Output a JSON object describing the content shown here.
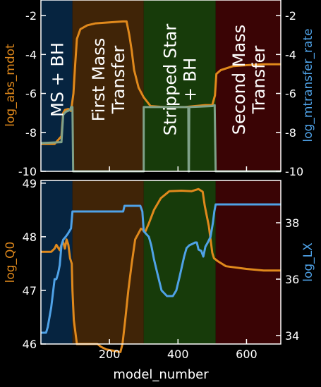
{
  "chart_data": [
    {
      "type": "line",
      "panel": "top",
      "xlim": [
        0,
        700
      ],
      "ylim_left": [
        -10,
        -1.2
      ],
      "ylim_right": [
        -10,
        -1.2
      ],
      "ylabel_left": "log_abs_mdot",
      "ylabel_right": "log_mtransfer_rate",
      "ytick_labels_left": [
        "-2",
        "-4",
        "-6",
        "-8",
        "-10"
      ],
      "ytick_labels_right": [
        "-2",
        "-4",
        "-6",
        "-8",
        "-10"
      ],
      "yticks": [
        -2,
        -4,
        -6,
        -8,
        -10
      ],
      "phases": [
        {
          "label": "MS + BH",
          "start": 0,
          "end": 92,
          "color": "#062440"
        },
        {
          "label": "First Mass\nTransfer",
          "start": 92,
          "end": 300,
          "color": "#402407"
        },
        {
          "label": "Stripped Star\n+ BH",
          "start": 300,
          "end": 510,
          "color": "#173b0a"
        },
        {
          "label": "Second Mass\nTransfer",
          "start": 510,
          "end": 700,
          "color": "#3a0405"
        }
      ],
      "series": [
        {
          "axis": "left",
          "color": "#e0891c",
          "points": [
            [
              0,
              -8.6
            ],
            [
              40,
              -8.6
            ],
            [
              60,
              -8.2
            ],
            [
              65,
              -7.0
            ],
            [
              70,
              -6.85
            ],
            [
              80,
              -6.8
            ],
            [
              88,
              -6.9
            ],
            [
              95,
              -6.0
            ],
            [
              100,
              -4.5
            ],
            [
              105,
              -3.2
            ],
            [
              115,
              -2.7
            ],
            [
              135,
              -2.5
            ],
            [
              160,
              -2.4
            ],
            [
              200,
              -2.35
            ],
            [
              240,
              -2.3
            ],
            [
              250,
              -2.3
            ],
            [
              258,
              -3.0
            ],
            [
              265,
              -3.8
            ],
            [
              272,
              -4.8
            ],
            [
              285,
              -5.7
            ],
            [
              300,
              -6.2
            ],
            [
              320,
              -6.65
            ],
            [
              360,
              -6.7
            ],
            [
              420,
              -6.7
            ],
            [
              480,
              -6.6
            ],
            [
              500,
              -6.6
            ],
            [
              508,
              -6.1
            ],
            [
              512,
              -5.0
            ],
            [
              525,
              -4.8
            ],
            [
              560,
              -4.6
            ],
            [
              600,
              -4.55
            ],
            [
              650,
              -4.5
            ],
            [
              700,
              -4.5
            ]
          ]
        },
        {
          "axis": "right",
          "color": "#7fa189",
          "points": [
            [
              0,
              -8.55
            ],
            [
              60,
              -8.5
            ],
            [
              65,
              -7.1
            ],
            [
              72,
              -6.95
            ],
            [
              85,
              -6.85
            ],
            [
              88,
              -6.7
            ],
            [
              92,
              -6.7
            ],
            [
              94,
              -10
            ],
            [
              300,
              -10
            ],
            [
              300,
              -6.7
            ],
            [
              430,
              -6.7
            ],
            [
              431,
              -10
            ],
            [
              432,
              -10
            ],
            [
              433,
              -6.7
            ],
            [
              500,
              -6.65
            ],
            [
              507,
              -6.6
            ],
            [
              510,
              -10
            ],
            [
              700,
              -10
            ]
          ]
        }
      ]
    },
    {
      "type": "line",
      "panel": "bottom",
      "xlim": [
        0,
        700
      ],
      "xlabel": "model_number",
      "xtick_labels": [
        "200",
        "400",
        "600"
      ],
      "xticks": [
        200,
        400,
        600
      ],
      "ylim_left": [
        46,
        49.05
      ],
      "ylim_right": [
        33.7,
        39.5
      ],
      "ylabel_left": "log_Q0",
      "ylabel_right": "log_LX",
      "ytick_labels_left": [
        "49",
        "48",
        "47",
        "46"
      ],
      "yticks_left": [
        49,
        48,
        47,
        46
      ],
      "ytick_labels_right": [
        "38",
        "36",
        "34"
      ],
      "yticks_right": [
        38,
        36,
        34
      ],
      "series": [
        {
          "axis": "left",
          "color": "#e0891c",
          "points": [
            [
              0,
              47.72
            ],
            [
              30,
              47.72
            ],
            [
              40,
              47.78
            ],
            [
              45,
              47.85
            ],
            [
              55,
              47.75
            ],
            [
              60,
              47.85
            ],
            [
              65,
              47.9
            ],
            [
              70,
              47.78
            ],
            [
              75,
              47.95
            ],
            [
              80,
              47.85
            ],
            [
              85,
              47.6
            ],
            [
              90,
              47.5
            ],
            [
              92,
              47.0
            ],
            [
              96,
              46.45
            ],
            [
              105,
              46.0
            ],
            [
              165,
              46.0
            ],
            [
              175,
              45.95
            ],
            [
              190,
              45.9
            ],
            [
              232,
              45.85
            ],
            [
              238,
              46.0
            ],
            [
              246,
              46.45
            ],
            [
              255,
              47.0
            ],
            [
              265,
              47.5
            ],
            [
              275,
              47.95
            ],
            [
              292,
              48.15
            ],
            [
              305,
              48.1
            ],
            [
              315,
              48.25
            ],
            [
              330,
              48.5
            ],
            [
              350,
              48.72
            ],
            [
              375,
              48.85
            ],
            [
              410,
              48.86
            ],
            [
              440,
              48.85
            ],
            [
              460,
              48.89
            ],
            [
              472,
              48.84
            ],
            [
              478,
              48.58
            ],
            [
              490,
              48.2
            ],
            [
              500,
              47.7
            ],
            [
              505,
              47.6
            ],
            [
              515,
              47.55
            ],
            [
              540,
              47.45
            ],
            [
              600,
              47.4
            ],
            [
              650,
              47.37
            ],
            [
              700,
              47.37
            ]
          ]
        },
        {
          "axis": "right",
          "color": "#4fa2e7",
          "points": [
            [
              0,
              34.1
            ],
            [
              15,
              34.1
            ],
            [
              20,
              34.3
            ],
            [
              30,
              35.0
            ],
            [
              35,
              35.5
            ],
            [
              40,
              36.0
            ],
            [
              45,
              36.0
            ],
            [
              50,
              36.2
            ],
            [
              55,
              36.5
            ],
            [
              60,
              37.2
            ],
            [
              65,
              37.4
            ],
            [
              72,
              37.5
            ],
            [
              78,
              37.6
            ],
            [
              83,
              37.7
            ],
            [
              88,
              37.8
            ],
            [
              92,
              38.4
            ],
            [
              100,
              38.4
            ],
            [
              240,
              38.4
            ],
            [
              244,
              38.6
            ],
            [
              255,
              38.6
            ],
            [
              266,
              38.6
            ],
            [
              290,
              38.6
            ],
            [
              296,
              38.4
            ],
            [
              300,
              37.7
            ],
            [
              315,
              37.5
            ],
            [
              322,
              37.2
            ],
            [
              330,
              36.7
            ],
            [
              340,
              36.2
            ],
            [
              352,
              35.6
            ],
            [
              368,
              35.4
            ],
            [
              385,
              35.4
            ],
            [
              395,
              35.6
            ],
            [
              405,
              36.1
            ],
            [
              418,
              36.8
            ],
            [
              425,
              37.1
            ],
            [
              433,
              37.2
            ],
            [
              442,
              37.25
            ],
            [
              450,
              37.3
            ],
            [
              455,
              37.3
            ],
            [
              460,
              37.05
            ],
            [
              468,
              37.0
            ],
            [
              474,
              36.8
            ],
            [
              480,
              37.15
            ],
            [
              487,
              37.3
            ],
            [
              495,
              37.5
            ],
            [
              502,
              38.0
            ],
            [
              506,
              38.4
            ],
            [
              510,
              38.65
            ],
            [
              700,
              38.65
            ]
          ]
        }
      ]
    }
  ]
}
